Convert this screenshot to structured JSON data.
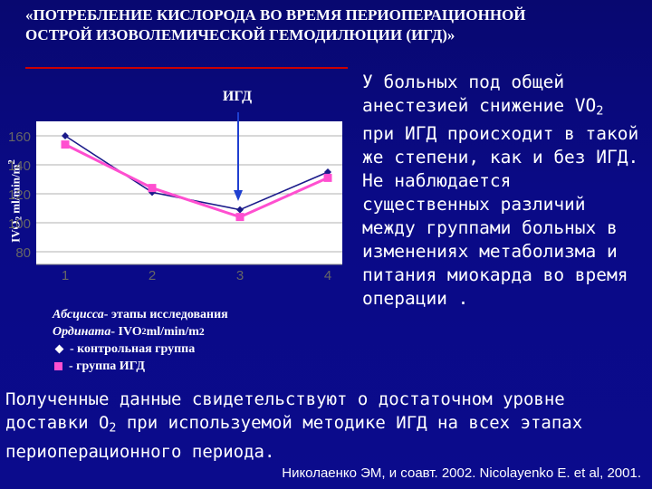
{
  "slide": {
    "title_line1": "«ПОТРЕБЛЕНИЕ КИСЛОРОДА ВО ВРЕМЯ ПЕРИОПЕРАЦИОННОЙ",
    "title_line2": "ОСТРОЙ ИЗОВОЛЕМИЧЕСКОЙ ГЕМОДИЛЮЦИИ (ИГД)»",
    "side_text": [
      {
        "pre": "У больных под общей анестезией снижение VO",
        "sub": "2",
        "post": " при ИГД происходит в такой же степени, как и без ИГД."
      },
      {
        "pre": "Не наблюдается существенных различий между группами больных в изменениях метаболизма и питания миокарда во время операции .",
        "sub": "",
        "post": ""
      }
    ],
    "bottom_text": {
      "pre": "Полученные данные свидетельствуют о достаточном уровне доставки O",
      "sub": "2",
      "post": " при используемой методике ИГД на всех этапах периоперационного периода."
    },
    "citation": "Николаенко ЭМ, и соавт. 2002. Nicolayenko E. et al, 2001.",
    "accent_color": "#cc0000",
    "background_color": "#0a0a86"
  },
  "legend": {
    "abscissa_key": "Абсцисса",
    "abscissa_text": " - этапы исследования",
    "ordinate_key": "Ордината",
    "ordinate_text_pre": " - IVO",
    "ordinate_sub": "2",
    "ordinate_text_post": " ml/min/m",
    "ordinate_sup": "2",
    "control_label": " - контрольная группа",
    "igd_label": " - группа ИГД"
  },
  "chart_data": {
    "type": "line",
    "title": "",
    "ylabel_pre": "IVO",
    "ylabel_sub": "2",
    "ylabel_post": " ml/min/m",
    "ylabel_sup": "2",
    "xlabel": "",
    "x": [
      1,
      2,
      3,
      4
    ],
    "ylim": [
      80,
      160
    ],
    "yticks": [
      80,
      100,
      120,
      140,
      160
    ],
    "grid": true,
    "series": [
      {
        "name": "контрольная группа",
        "values": [
          160,
          121,
          109,
          135
        ],
        "color": "#1a1a8a",
        "marker": "diamond"
      },
      {
        "name": "группа ИГД",
        "values": [
          154,
          124,
          104,
          131
        ],
        "color": "#ff4fd0",
        "marker": "square"
      }
    ],
    "annotation": {
      "text": "ИГД",
      "at_x": 3,
      "color": "#1f3fd0"
    }
  }
}
